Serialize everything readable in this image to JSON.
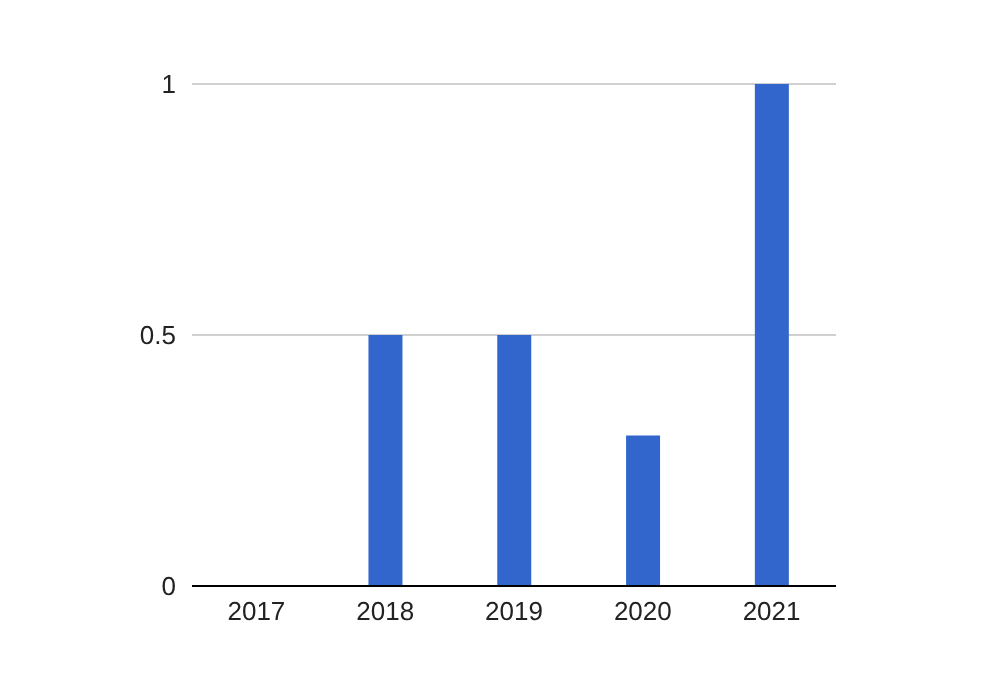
{
  "chart_data": {
    "type": "bar",
    "categories": [
      "2017",
      "2018",
      "2019",
      "2020",
      "2021"
    ],
    "values": [
      0,
      0.5,
      0.5,
      0.3,
      1
    ],
    "color": "#3366cc",
    "ylim": [
      0,
      1
    ],
    "yticks": [
      0,
      0.5,
      1
    ],
    "grid": "y"
  }
}
